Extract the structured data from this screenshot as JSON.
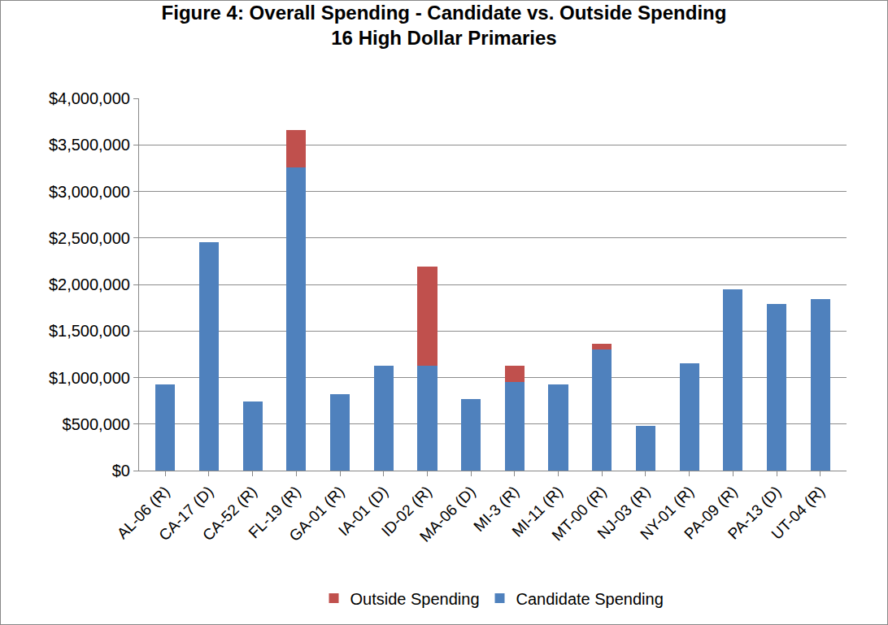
{
  "chart_data": {
    "type": "bar",
    "stacked": true,
    "title": "Figure 4: Overall Spending - Candidate vs. Outside Spending",
    "subtitle": "16 High Dollar Primaries",
    "categories": [
      "AL-06 (R)",
      "CA-17 (D)",
      "CA-52 (R)",
      "FL-19 (R)",
      "GA-01 (R)",
      "IA-01 (D)",
      "ID-02 (R)",
      "MA-06 (D)",
      "MI-3 (R)",
      "MI-11 (R)",
      "MT-00 (R)",
      "NJ-03 (R)",
      "NY-01 (R)",
      "PA-09 (R)",
      "PA-13 (D)",
      "UT-04 (R)"
    ],
    "series": [
      {
        "name": "Candidate Spending",
        "color": "#4f81bd",
        "values": [
          930000,
          2450000,
          740000,
          3260000,
          820000,
          1130000,
          1130000,
          770000,
          950000,
          930000,
          1300000,
          480000,
          1150000,
          1950000,
          1790000,
          1840000
        ]
      },
      {
        "name": "Outside Spending",
        "color": "#c0504d",
        "values": [
          0,
          0,
          0,
          400000,
          0,
          0,
          1060000,
          0,
          180000,
          0,
          60000,
          0,
          0,
          0,
          0,
          0
        ]
      }
    ],
    "ylim": [
      0,
      4000000
    ],
    "yticks": [
      {
        "value": 0,
        "label": "$0"
      },
      {
        "value": 500000,
        "label": "$500,000"
      },
      {
        "value": 1000000,
        "label": "$1,000,000"
      },
      {
        "value": 1500000,
        "label": "$1,500,000"
      },
      {
        "value": 2000000,
        "label": "$2,000,000"
      },
      {
        "value": 2500000,
        "label": "$2,500,000"
      },
      {
        "value": 3000000,
        "label": "$3,000,000"
      },
      {
        "value": 3500000,
        "label": "$3,500,000"
      },
      {
        "value": 4000000,
        "label": "$4,000,000"
      }
    ],
    "grid": true,
    "legend": "bottom"
  }
}
